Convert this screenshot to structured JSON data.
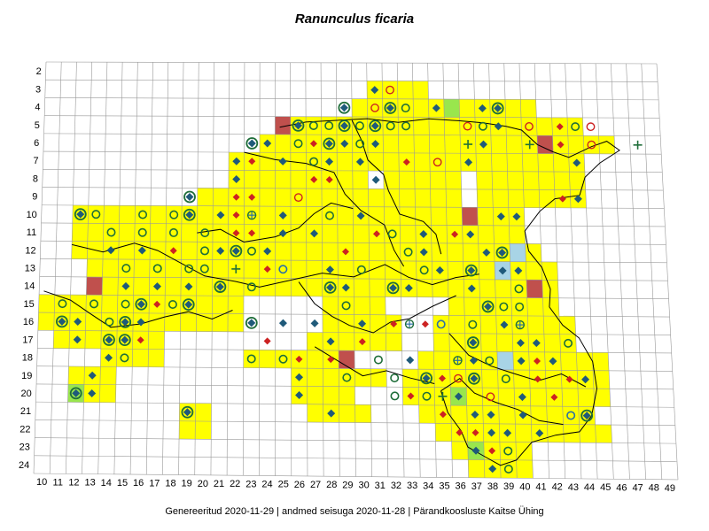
{
  "title": "Ranunculus ficaria",
  "footer": {
    "generated": "Genereeritud 2020-11-29",
    "data_state": "andmed seisuga 2020-11-28",
    "organization": "Pärandkoosluste Kaitse Ühing",
    "separator": "|"
  },
  "grid": {
    "columns": [
      "10",
      "11",
      "12",
      "13",
      "14",
      "15",
      "16",
      "17",
      "18",
      "19",
      "20",
      "21",
      "22",
      "23",
      "24",
      "25",
      "26",
      "27",
      "28",
      "29",
      "30",
      "31",
      "32",
      "33",
      "34",
      "35",
      "36",
      "37",
      "38",
      "39",
      "40",
      "41",
      "42",
      "43",
      "44",
      "45",
      "46",
      "47",
      "48",
      "49"
    ],
    "rows": [
      "2",
      "3",
      "4",
      "5",
      "6",
      "7",
      "8",
      "9",
      "10",
      "11",
      "12",
      "13",
      "14",
      "15",
      "16",
      "17",
      "18",
      "19",
      "20",
      "21",
      "22",
      "23",
      "24"
    ]
  },
  "colors": {
    "present": "#ffff00",
    "old_record": "#c0504d",
    "recent_record": "#99e64d",
    "uncertain": "#a8d4e6",
    "grid_line": "#999999",
    "border": "#000000",
    "symbol_diamond": "#1f5a7a",
    "symbol_red": "#cc2222",
    "symbol_ring": "#1f6e3a"
  },
  "symbols": [
    "blue-diamond",
    "red-diamond",
    "green-ring",
    "red-ring",
    "blue-ring",
    "cross",
    "plus-in-ring",
    "diamond-in-ring"
  ]
}
